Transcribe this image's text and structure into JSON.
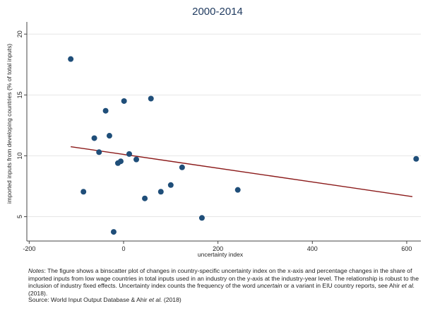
{
  "chart_data": {
    "type": "scatter",
    "title": "2000-2014",
    "xlabel": "uncertainty index",
    "ylabel": "imported inputs from developing countries (% of total inputs)",
    "xlim": [
      -205,
      630
    ],
    "ylim": [
      3,
      21
    ],
    "xticks": [
      -200,
      0,
      200,
      400,
      600
    ],
    "yticks": [
      5,
      10,
      15,
      20
    ],
    "grid": "horizontal",
    "points": [
      {
        "x": -112,
        "y": 17.95
      },
      {
        "x": -85,
        "y": 7.05
      },
      {
        "x": -62,
        "y": 11.45
      },
      {
        "x": -52,
        "y": 10.3
      },
      {
        "x": -38,
        "y": 13.7
      },
      {
        "x": -30,
        "y": 11.65
      },
      {
        "x": -21,
        "y": 3.75
      },
      {
        "x": -12,
        "y": 9.4
      },
      {
        "x": -6,
        "y": 9.55
      },
      {
        "x": 1,
        "y": 14.5
      },
      {
        "x": 12,
        "y": 10.15
      },
      {
        "x": 27,
        "y": 9.7
      },
      {
        "x": 45,
        "y": 6.5
      },
      {
        "x": 58,
        "y": 14.7
      },
      {
        "x": 79,
        "y": 7.05
      },
      {
        "x": 100,
        "y": 7.6
      },
      {
        "x": 124,
        "y": 9.05
      },
      {
        "x": 166,
        "y": 4.9
      },
      {
        "x": 242,
        "y": 7.2
      },
      {
        "x": 620,
        "y": 9.75
      }
    ],
    "fit_line": [
      {
        "x": -112,
        "y": 10.75
      },
      {
        "x": 612,
        "y": 6.65
      }
    ],
    "colors": {
      "points": "#1f4e79",
      "fit_line": "#8b1a1a",
      "title": "#1f3a5f",
      "grid": "#e6e6e6"
    }
  },
  "notes": {
    "label": "Notes",
    "text_a": ": The figure shows a binscatter plot of changes in country-specific uncertainty index on the x-axis and percentage changes in the share of imported inputs from low wage countries in total inputs used in an industry on the y-axis at the industry-year level. The relationship is robust to the inclusion of industry fixed effects. Uncertainty index counts the frequency of the word ",
    "word": "uncertain",
    "text_b": " or a variant in EIU country reports, see Ahir ",
    "etal": "et al.",
    "text_c": " (2018)."
  },
  "source": {
    "text_a": "Source: World Input Output Database & Ahir ",
    "etal": "et al.",
    "text_b": " (2018)"
  }
}
